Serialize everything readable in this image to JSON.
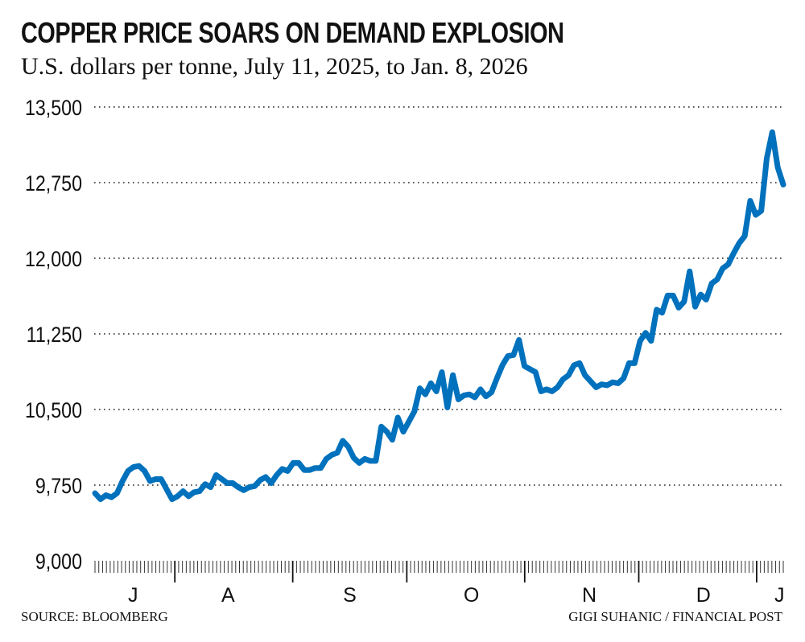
{
  "chart_data": {
    "type": "line",
    "title": "COPPER PRICE SOARS ON DEMAND EXPLOSION",
    "subtitle": "U.S. dollars per tonne, July 11, 2025, to Jan. 8, 2026",
    "xlabel": "",
    "ylabel": "",
    "ylim": [
      9000,
      13500
    ],
    "yticks": [
      9000,
      9750,
      10500,
      11250,
      12000,
      12750,
      13500
    ],
    "ytick_labels": [
      "9,000",
      "9,750",
      "10,500",
      "11,250",
      "12,000",
      "12,750",
      "13,500"
    ],
    "x_start": "2025-07-11",
    "x_end": "2026-01-08",
    "x_days": 181,
    "month_labels": [
      {
        "label": "J",
        "day": 10
      },
      {
        "label": "A",
        "day": 35
      },
      {
        "label": "S",
        "day": 67
      },
      {
        "label": "O",
        "day": 99
      },
      {
        "label": "N",
        "day": 130
      },
      {
        "label": "D",
        "day": 160
      },
      {
        "label": "J",
        "day": 180
      }
    ],
    "month_boundaries_day": [
      21,
      52,
      82,
      113,
      143,
      174
    ],
    "grid": true,
    "series": [
      {
        "name": "Copper price",
        "color": "#0071bc",
        "values": [
          9670,
          9610,
          9650,
          9630,
          9670,
          9790,
          9890,
          9930,
          9940,
          9890,
          9790,
          9810,
          9810,
          9710,
          9610,
          9640,
          9690,
          9640,
          9680,
          9690,
          9760,
          9730,
          9850,
          9810,
          9770,
          9770,
          9730,
          9700,
          9730,
          9740,
          9800,
          9830,
          9770,
          9850,
          9910,
          9890,
          9970,
          9970,
          9900,
          9900,
          9920,
          9920,
          10010,
          10050,
          10070,
          10190,
          10130,
          10020,
          9970,
          10010,
          9990,
          9990,
          10330,
          10280,
          10200,
          10420,
          10280,
          10380,
          10480,
          10710,
          10650,
          10760,
          10680,
          10870,
          10520,
          10840,
          10600,
          10640,
          10650,
          10620,
          10700,
          10630,
          10670,
          10810,
          10940,
          11030,
          11040,
          11190,
          10930,
          10900,
          10870,
          10680,
          10700,
          10680,
          10720,
          10800,
          10840,
          10940,
          10960,
          10840,
          10780,
          10720,
          10750,
          10740,
          10770,
          10760,
          10810,
          10960,
          10960,
          11180,
          11260,
          11180,
          11490,
          11460,
          11630,
          11630,
          11510,
          11570,
          11870,
          11520,
          11640,
          11590,
          11750,
          11790,
          11900,
          11940,
          12050,
          12150,
          12220,
          12570,
          12430,
          12470,
          12990,
          13250,
          12900,
          12730
        ]
      }
    ],
    "source": "SOURCE: BLOOMBERG",
    "credit": "GIGI SUHANIC / FINANCIAL POST"
  }
}
